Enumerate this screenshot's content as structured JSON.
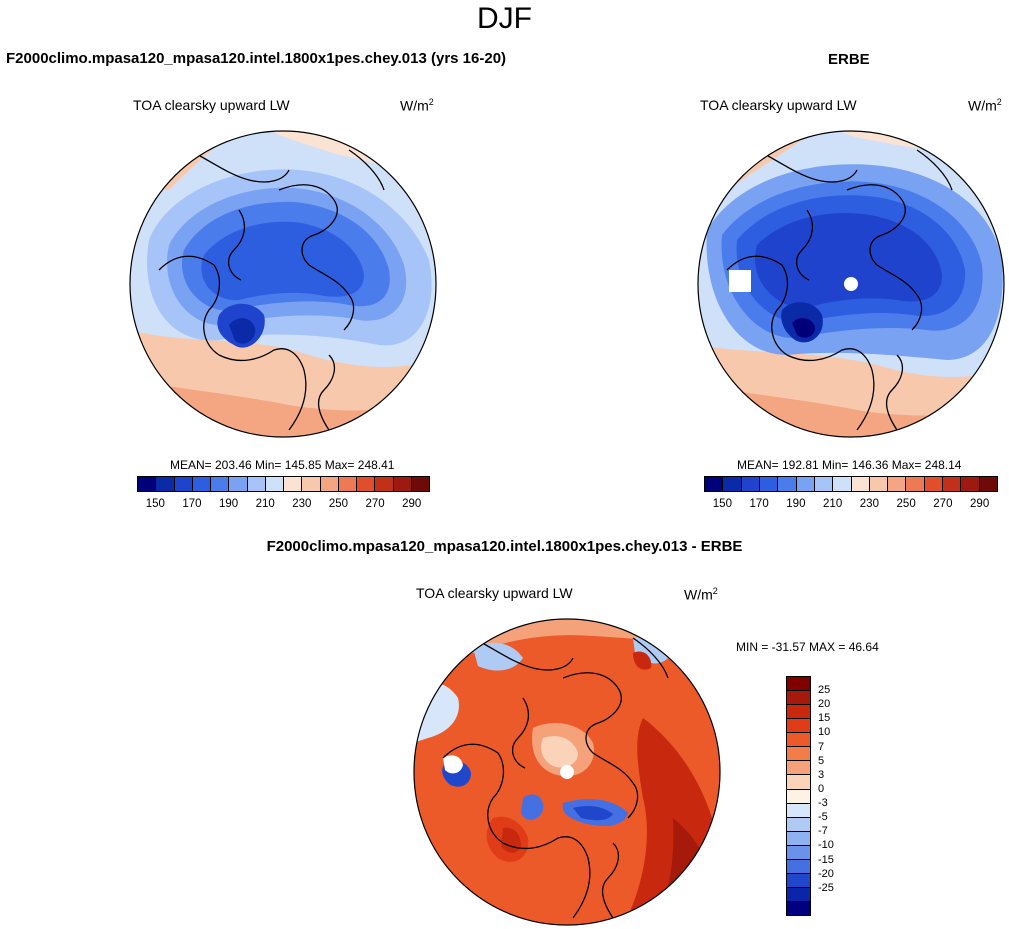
{
  "figure": {
    "suptitle": "DJF",
    "panels": {
      "model": {
        "title": "F2000climo.mpasa120_mpasa120.intel.1800x1pes.chey.013 (yrs 16-20)",
        "variable": "TOA clearsky upward LW",
        "units_base": "W/m",
        "units_exp": "2",
        "stats": "MEAN= 203.46  Min= 145.85  Max= 248.41"
      },
      "obs": {
        "title": "ERBE",
        "variable": "TOA clearsky upward LW",
        "units_base": "W/m",
        "units_exp": "2",
        "stats": "MEAN= 192.81  Min= 146.36  Max= 248.14"
      },
      "diff": {
        "title": "F2000climo.mpasa120_mpasa120.intel.1800x1pes.chey.013 - ERBE",
        "variable": "TOA clearsky upward LW",
        "units_base": "W/m",
        "units_exp": "2",
        "stats": "MIN = -31.57 MAX =  46.64"
      }
    }
  },
  "chart_data": [
    {
      "type": "heatmap",
      "projection": "north polar stereographic",
      "title": "F2000climo.mpasa120_mpasa120.intel.1800x1pes.chey.013 (yrs 16-20)",
      "variable": "TOA clearsky upward LW",
      "units": "W/m2",
      "mean": 203.46,
      "min": 145.85,
      "max": 248.41,
      "colorbar_levels": [
        150,
        160,
        170,
        180,
        190,
        200,
        210,
        220,
        230,
        240,
        250,
        260,
        270,
        280,
        290
      ],
      "colorbar_labels": [
        "150",
        "170",
        "190",
        "210",
        "230",
        "250",
        "270",
        "290"
      ],
      "colorbar_colors": [
        "#00007a",
        "#0a2aa8",
        "#1f43cc",
        "#2e5ee0",
        "#4a7cec",
        "#7aa2f2",
        "#a6c4f7",
        "#cfe0f9",
        "#fbe3d3",
        "#f8c8ad",
        "#f4a582",
        "#ee7a55",
        "#e04e2b",
        "#c2301a",
        "#9e1a10",
        "#6e0a08"
      ]
    },
    {
      "type": "heatmap",
      "projection": "north polar stereographic",
      "title": "ERBE",
      "variable": "TOA clearsky upward LW",
      "units": "W/m2",
      "mean": 192.81,
      "min": 146.36,
      "max": 248.14,
      "colorbar_levels": [
        150,
        160,
        170,
        180,
        190,
        200,
        210,
        220,
        230,
        240,
        250,
        260,
        270,
        280,
        290
      ],
      "colorbar_labels": [
        "150",
        "170",
        "190",
        "210",
        "230",
        "250",
        "270",
        "290"
      ],
      "colorbar_colors": [
        "#00007a",
        "#0a2aa8",
        "#1f43cc",
        "#2e5ee0",
        "#4a7cec",
        "#7aa2f2",
        "#a6c4f7",
        "#cfe0f9",
        "#fbe3d3",
        "#f8c8ad",
        "#f4a582",
        "#ee7a55",
        "#e04e2b",
        "#c2301a",
        "#9e1a10",
        "#6e0a08"
      ]
    },
    {
      "type": "heatmap",
      "projection": "north polar stereographic",
      "title": "F2000climo.mpasa120_mpasa120.intel.1800x1pes.chey.013 - ERBE",
      "variable": "TOA clearsky upward LW",
      "units": "W/m2",
      "min": -31.57,
      "max": 46.64,
      "colorbar_levels": [
        25,
        20,
        15,
        10,
        7,
        5,
        3,
        0,
        -3,
        -5,
        -7,
        -10,
        -15,
        -20,
        -25
      ],
      "colorbar_labels": [
        "25",
        "20",
        "15",
        "10",
        "7",
        "5",
        "3",
        "0",
        "-3",
        "-5",
        "-7",
        "-10",
        "-15",
        "-20",
        "-25"
      ],
      "colorbar_colors": [
        "#800000",
        "#a51a0a",
        "#c8290e",
        "#e03c17",
        "#ec5a2a",
        "#f27d48",
        "#f5a27a",
        "#fbd3b8",
        "#fff3e6",
        "#d7e6fa",
        "#b0cbf3",
        "#8fb1ef",
        "#6a92ea",
        "#4570e2",
        "#2046cc",
        "#0a25a8",
        "#000080"
      ]
    }
  ]
}
